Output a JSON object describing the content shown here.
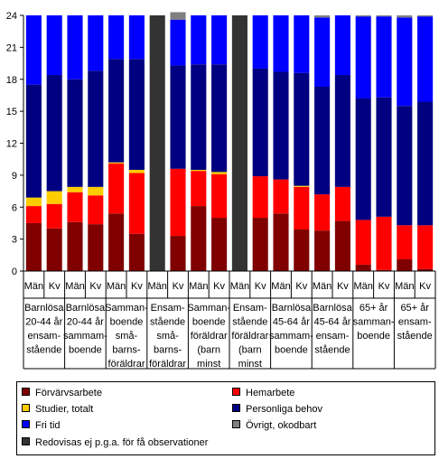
{
  "chart_data": {
    "type": "bar",
    "stacked": true,
    "ylim": [
      0,
      24
    ],
    "yticks": [
      0,
      3,
      6,
      9,
      12,
      15,
      18,
      21,
      24
    ],
    "grid": false,
    "legend_position": "bottom",
    "categories": [
      "Män",
      "Kv",
      "Män",
      "Kv",
      "Män",
      "Kv",
      "Män",
      "Kv",
      "Män",
      "Kv",
      "Män",
      "Kv",
      "Män",
      "Kv",
      "Män",
      "Kv",
      "Män",
      "Kv",
      "Män",
      "Kv"
    ],
    "groups": [
      [
        "Barnlösa",
        "20-44 år",
        "ensam-",
        "stående"
      ],
      [
        "Barnlösa",
        "20-44 år",
        "sammam-",
        "boende"
      ],
      [
        "Samman-",
        "boende",
        "små-",
        "barns-",
        "föräldrar"
      ],
      [
        "Ensam-",
        "stående",
        "små-",
        "barns-",
        "föräldrar"
      ],
      [
        "Samman-",
        "boende",
        "föräldrar",
        "(barn",
        "minst"
      ],
      [
        "Ensam-",
        "stående",
        "föräldrar",
        "(barn",
        "minst"
      ],
      [
        "Barnlösa",
        "45-64 år",
        "sammam-",
        "boende"
      ],
      [
        "Barnlösa",
        "45-64 år",
        "ensam-",
        "stående"
      ],
      [
        "65+ år",
        "samman-",
        "boende"
      ],
      [
        "65+ år",
        "ensam-",
        "stående"
      ]
    ],
    "series": [
      {
        "name": "Förvärvsarbete",
        "color": "#800000",
        "values": [
          4.5,
          4.0,
          4.6,
          4.4,
          5.4,
          3.5,
          0,
          3.3,
          6.1,
          5.0,
          0,
          5.0,
          5.4,
          3.9,
          3.8,
          4.7,
          0.6,
          0.1,
          1.1,
          0.2
        ]
      },
      {
        "name": "Hemarbete",
        "color": "#ff0000",
        "values": [
          1.6,
          2.3,
          2.8,
          2.7,
          4.7,
          5.7,
          0,
          6.3,
          3.3,
          4.1,
          0,
          3.9,
          3.2,
          4.0,
          3.4,
          3.2,
          4.2,
          5.0,
          3.2,
          4.1
        ]
      },
      {
        "name": "Studier, totalt",
        "color": "#ffcc00",
        "values": [
          0.8,
          1.2,
          0.5,
          0.8,
          0.1,
          0.3,
          0,
          0,
          0.1,
          0.2,
          0,
          0,
          0,
          0.1,
          0,
          0,
          0,
          0,
          0,
          0
        ]
      },
      {
        "name": "Personliga behov",
        "color": "#000080",
        "values": [
          10.6,
          10.9,
          10.1,
          10.9,
          9.7,
          10.4,
          0,
          9.7,
          9.9,
          10.1,
          0,
          10.1,
          10.1,
          10.6,
          10.1,
          10.5,
          11.4,
          11.2,
          11.2,
          11.6
        ]
      },
      {
        "name": "Fri tid",
        "color": "#0000ff",
        "values": [
          6.5,
          5.6,
          6.0,
          5.2,
          4.1,
          4.1,
          0,
          4.3,
          4.6,
          4.6,
          0,
          5.0,
          5.3,
          5.4,
          6.5,
          5.6,
          7.7,
          7.6,
          8.3,
          8.0
        ]
      },
      {
        "name": "Övrigt, okodbart",
        "color": "#808080",
        "values": [
          0,
          0,
          0,
          0,
          0,
          0,
          0,
          0.7,
          0,
          0,
          0,
          0,
          0,
          0,
          0.2,
          0,
          0.1,
          0.1,
          0.2,
          0.1
        ]
      },
      {
        "name": "Redovisas ej p.g.a. för få observationer",
        "color": "#333333",
        "values": [
          0,
          0,
          0,
          0,
          0,
          0,
          24,
          0,
          0,
          0,
          24,
          0,
          0,
          0,
          0,
          0,
          0,
          0,
          0,
          0
        ]
      }
    ]
  }
}
